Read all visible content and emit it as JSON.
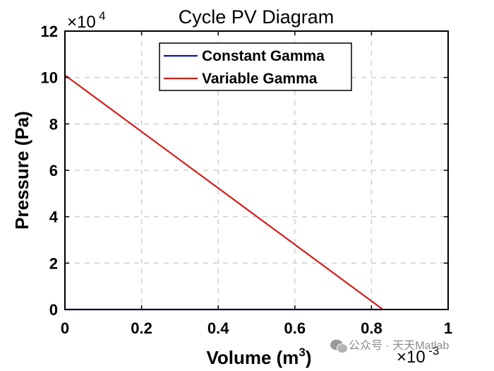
{
  "chart_data": {
    "type": "line",
    "title": "Cycle PV Diagram",
    "xlabel": "Volume (m",
    "xlabel_sup": "3",
    "xlabel_close": ")",
    "ylabel": "Pressure (Pa)",
    "x_exponent": "×10",
    "x_exponent_power": "-3",
    "y_exponent": "×10",
    "y_exponent_power": "4",
    "xlim": [
      0,
      1
    ],
    "ylim": [
      0,
      12
    ],
    "xticks": [
      0,
      0.2,
      0.4,
      0.6,
      0.8,
      1
    ],
    "xtick_labels": [
      "0",
      "0.2",
      "0.4",
      "0.6",
      "0.8",
      "1"
    ],
    "yticks": [
      0,
      2,
      4,
      6,
      8,
      10,
      12
    ],
    "ytick_labels": [
      "0",
      "2",
      "4",
      "6",
      "8",
      "10",
      "12"
    ],
    "grid": true,
    "legend_position": "top-center",
    "series": [
      {
        "name": "Constant Gamma",
        "color": "#0a1aa0",
        "x": [
          0,
          0.83
        ],
        "y": [
          0,
          0
        ]
      },
      {
        "name": "Variable Gamma",
        "color": "#d0201a",
        "x": [
          0,
          0.83
        ],
        "y": [
          10.1,
          0
        ]
      }
    ]
  },
  "watermark": {
    "text": "公众号 · 天天Matlab"
  }
}
